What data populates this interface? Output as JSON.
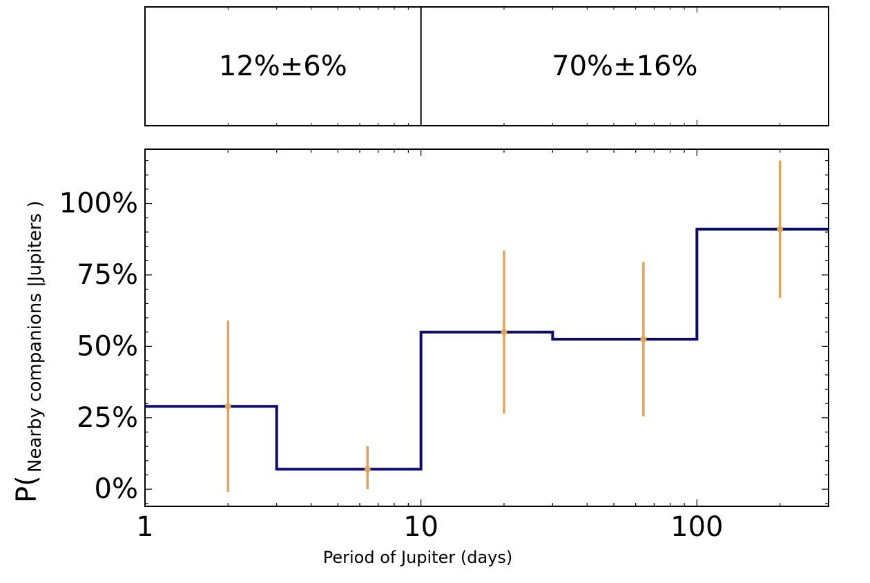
{
  "chart_data": [
    {
      "type": "table",
      "name": "bin-summary-panel",
      "cells": [
        {
          "x_range": [
            1,
            10
          ],
          "text": "12%±6%"
        },
        {
          "x_range": [
            10,
            300
          ],
          "text": "70%±16%"
        }
      ],
      "divider_x": 10,
      "xlim": [
        1,
        300
      ],
      "xscale": "log"
    },
    {
      "type": "line",
      "step": true,
      "xscale": "log",
      "xlim": [
        1,
        300
      ],
      "ylim": [
        -0.06,
        1.19
      ],
      "xlabel": "Period of Jupiter (days)",
      "ylabel_main": "P(",
      "ylabel_sub": "Nearby companions  |Jupiters  )",
      "x_ticks": [
        {
          "value": 1,
          "label": "1"
        },
        {
          "value": 10,
          "label": "10"
        },
        {
          "value": 100,
          "label": "100"
        }
      ],
      "y_ticks": [
        {
          "value": 0,
          "label": "0%"
        },
        {
          "value": 0.25,
          "label": "25%"
        },
        {
          "value": 0.5,
          "label": "50%"
        },
        {
          "value": 0.75,
          "label": "75%"
        },
        {
          "value": 1.0,
          "label": "100%"
        }
      ],
      "step_series": {
        "color": "#0b0b6e",
        "bins": [
          {
            "x0": 1,
            "x1": 3,
            "y": 0.29
          },
          {
            "x0": 3,
            "x1": 10,
            "y": 0.07
          },
          {
            "x0": 10,
            "x1": 30,
            "y": 0.55
          },
          {
            "x0": 30,
            "x1": 100,
            "y": 0.525
          },
          {
            "x0": 100,
            "x1": 300,
            "y": 0.91
          }
        ]
      },
      "points_series": {
        "color": "#e0a458",
        "points": [
          {
            "x": 2.0,
            "y": 0.29,
            "low": -0.01,
            "high": 0.59
          },
          {
            "x": 6.4,
            "y": 0.07,
            "low": 0.0,
            "high": 0.15
          },
          {
            "x": 20,
            "y": 0.55,
            "low": 0.265,
            "high": 0.835
          },
          {
            "x": 64,
            "y": 0.525,
            "low": 0.255,
            "high": 0.795
          },
          {
            "x": 200,
            "y": 0.91,
            "low": 0.67,
            "high": 1.15
          }
        ]
      },
      "grid": false,
      "legend": "none"
    }
  ]
}
